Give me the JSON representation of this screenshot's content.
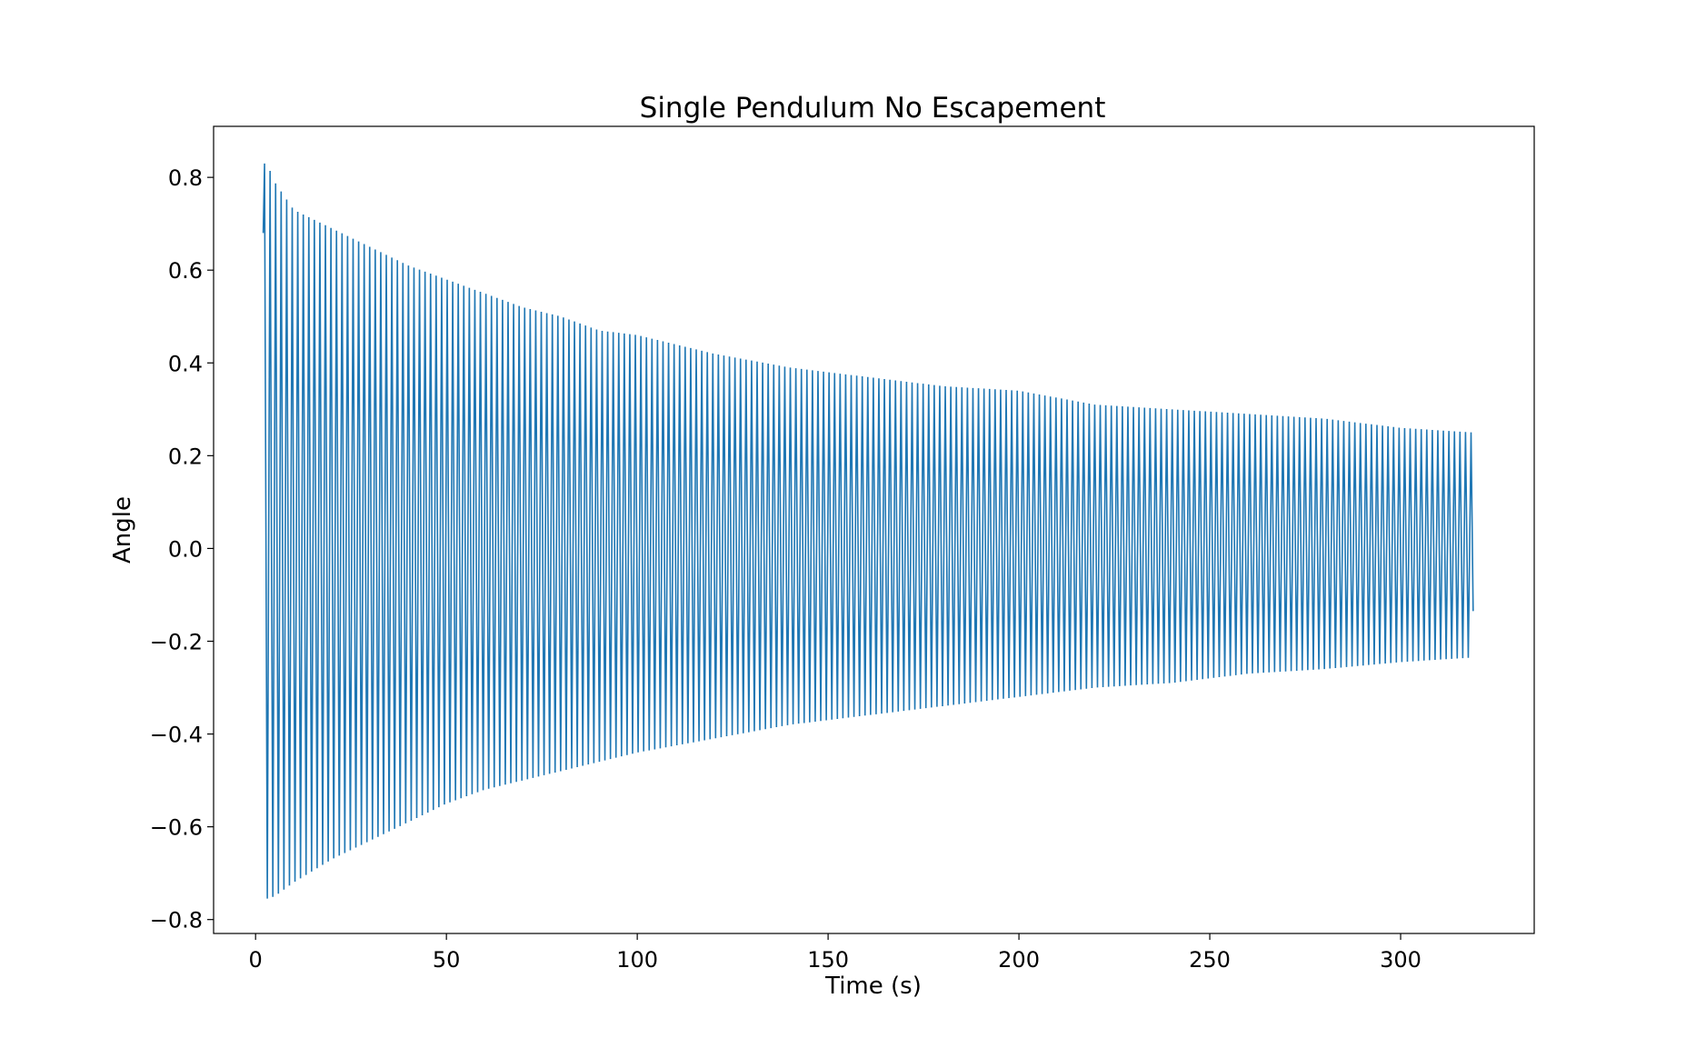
{
  "chart_data": {
    "type": "line",
    "title": "Single Pendulum No Escapement",
    "xlabel": "Time (s)",
    "ylabel": "Angle",
    "xlim": [
      -11,
      335
    ],
    "ylim": [
      -0.83,
      0.91
    ],
    "xticks": [
      0,
      50,
      100,
      150,
      200,
      250,
      300
    ],
    "xtick_labels": [
      "0",
      "50",
      "100",
      "150",
      "200",
      "250",
      "300"
    ],
    "yticks": [
      -0.8,
      -0.6,
      -0.4,
      -0.2,
      0.0,
      0.2,
      0.4,
      0.6,
      0.8
    ],
    "ytick_labels": [
      "−0.8",
      "−0.6",
      "−0.4",
      "−0.2",
      "0.0",
      "0.2",
      "0.4",
      "0.6",
      "0.8"
    ],
    "grid": false,
    "legend": "none",
    "series": [
      {
        "color": "#1f77b4",
        "signal": "damped oscillation",
        "t_start": 2,
        "t_end": 319,
        "period": 1.45,
        "start_value": 0.68,
        "upper_envelope": {
          "t": [
            3,
            5,
            10,
            20,
            30,
            40,
            50,
            60,
            70,
            80,
            90,
            100,
            120,
            140,
            160,
            180,
            200,
            220,
            240,
            260,
            280,
            300,
            319
          ],
          "value": [
            0.83,
            0.79,
            0.73,
            0.69,
            0.65,
            0.61,
            0.58,
            0.55,
            0.52,
            0.5,
            0.47,
            0.46,
            0.42,
            0.39,
            0.37,
            0.35,
            0.34,
            0.31,
            0.3,
            0.29,
            0.28,
            0.26,
            0.25
          ]
        },
        "lower_envelope": {
          "t": [
            3,
            5,
            10,
            20,
            30,
            40,
            50,
            60,
            70,
            80,
            90,
            100,
            120,
            140,
            160,
            180,
            200,
            220,
            240,
            260,
            280,
            300,
            319
          ],
          "value": [
            -0.755,
            -0.75,
            -0.72,
            -0.67,
            -0.63,
            -0.59,
            -0.55,
            -0.52,
            -0.5,
            -0.48,
            -0.46,
            -0.44,
            -0.41,
            -0.38,
            -0.36,
            -0.34,
            -0.32,
            -0.3,
            -0.29,
            -0.27,
            -0.26,
            -0.245,
            -0.235
          ]
        },
        "end_value": -0.135
      }
    ]
  }
}
